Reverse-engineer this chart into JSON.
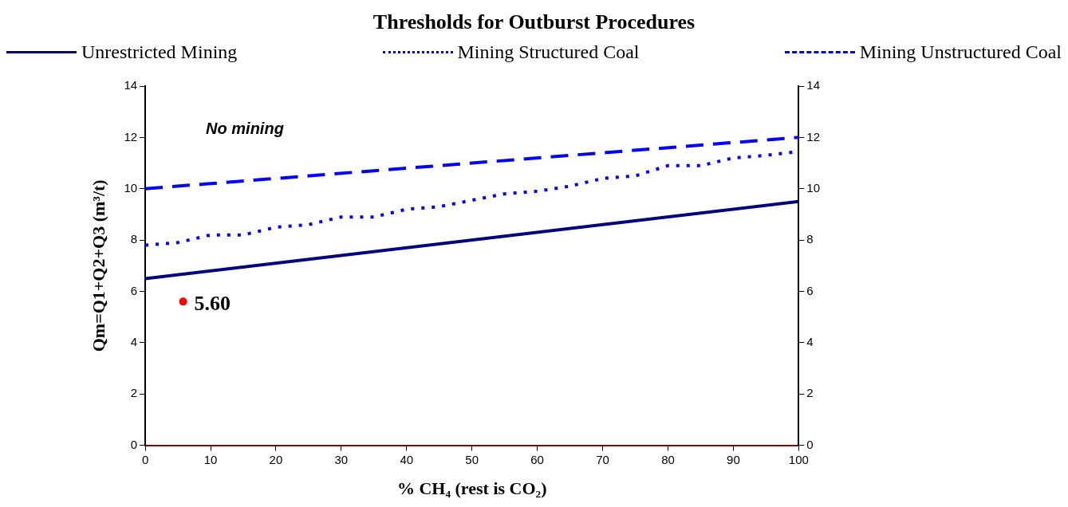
{
  "chart_data": {
    "type": "line",
    "title": "Thresholds for Outburst Procedures",
    "xlabel": "% CH₄ (rest is CO₂)",
    "ylabel": "Qm=Q1+Q2+Q3 (m³/t)",
    "x": [
      0,
      100
    ],
    "series": [
      {
        "name": "Unrestricted Mining",
        "color": "#000080",
        "line_style": "solid",
        "values": [
          6.5,
          9.5
        ]
      },
      {
        "name": "Mining Structured Coal",
        "color": "#0000ff",
        "line_style": "dotted",
        "x": [
          0,
          5,
          10,
          15,
          20,
          25,
          30,
          35,
          40,
          45,
          50,
          55,
          60,
          65,
          70,
          75,
          80,
          85,
          90,
          95,
          100
        ],
        "values": [
          7.8,
          7.9,
          8.2,
          8.2,
          8.5,
          8.6,
          8.9,
          8.9,
          9.2,
          9.3,
          9.55,
          9.8,
          9.9,
          10.1,
          10.4,
          10.5,
          10.9,
          10.9,
          11.2,
          11.3,
          11.45
        ]
      },
      {
        "name": "Mining Unstructured Coal",
        "color": "#0000ff",
        "line_style": "dashed",
        "values": [
          10,
          12
        ]
      },
      {
        "type": "scatter",
        "color": "#ff0000",
        "marker": "circle",
        "x": [
          5.8
        ],
        "values": [
          5.6
        ],
        "value_labels": [
          "5.60"
        ]
      }
    ],
    "xlim": [
      0,
      100
    ],
    "xticks": [
      0,
      10,
      20,
      30,
      40,
      50,
      60,
      70,
      80,
      90,
      100
    ],
    "ylim": [
      0,
      14
    ],
    "yticks": [
      0,
      2,
      4,
      6,
      8,
      10,
      12,
      14
    ],
    "y2lim": [
      0,
      14
    ],
    "y2ticks": [
      0,
      2,
      4,
      6,
      8,
      10,
      12,
      14
    ],
    "annotations": [
      "No mining"
    ],
    "grid": false,
    "legend": "top",
    "marker": "none"
  }
}
